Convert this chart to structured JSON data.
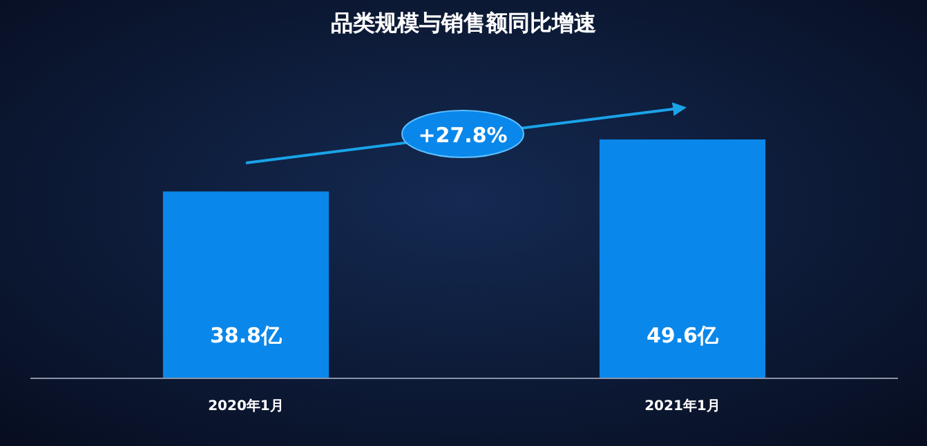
{
  "chart_data": {
    "type": "bar",
    "title": "品类规模与销售额同比增速",
    "categories": [
      "2020年1月",
      "2021年1月"
    ],
    "values": [
      38.8,
      49.6
    ],
    "value_labels": [
      "38.8亿",
      "49.6亿"
    ],
    "color": "#0a87ea",
    "annotations": [
      "+27.8%"
    ]
  }
}
